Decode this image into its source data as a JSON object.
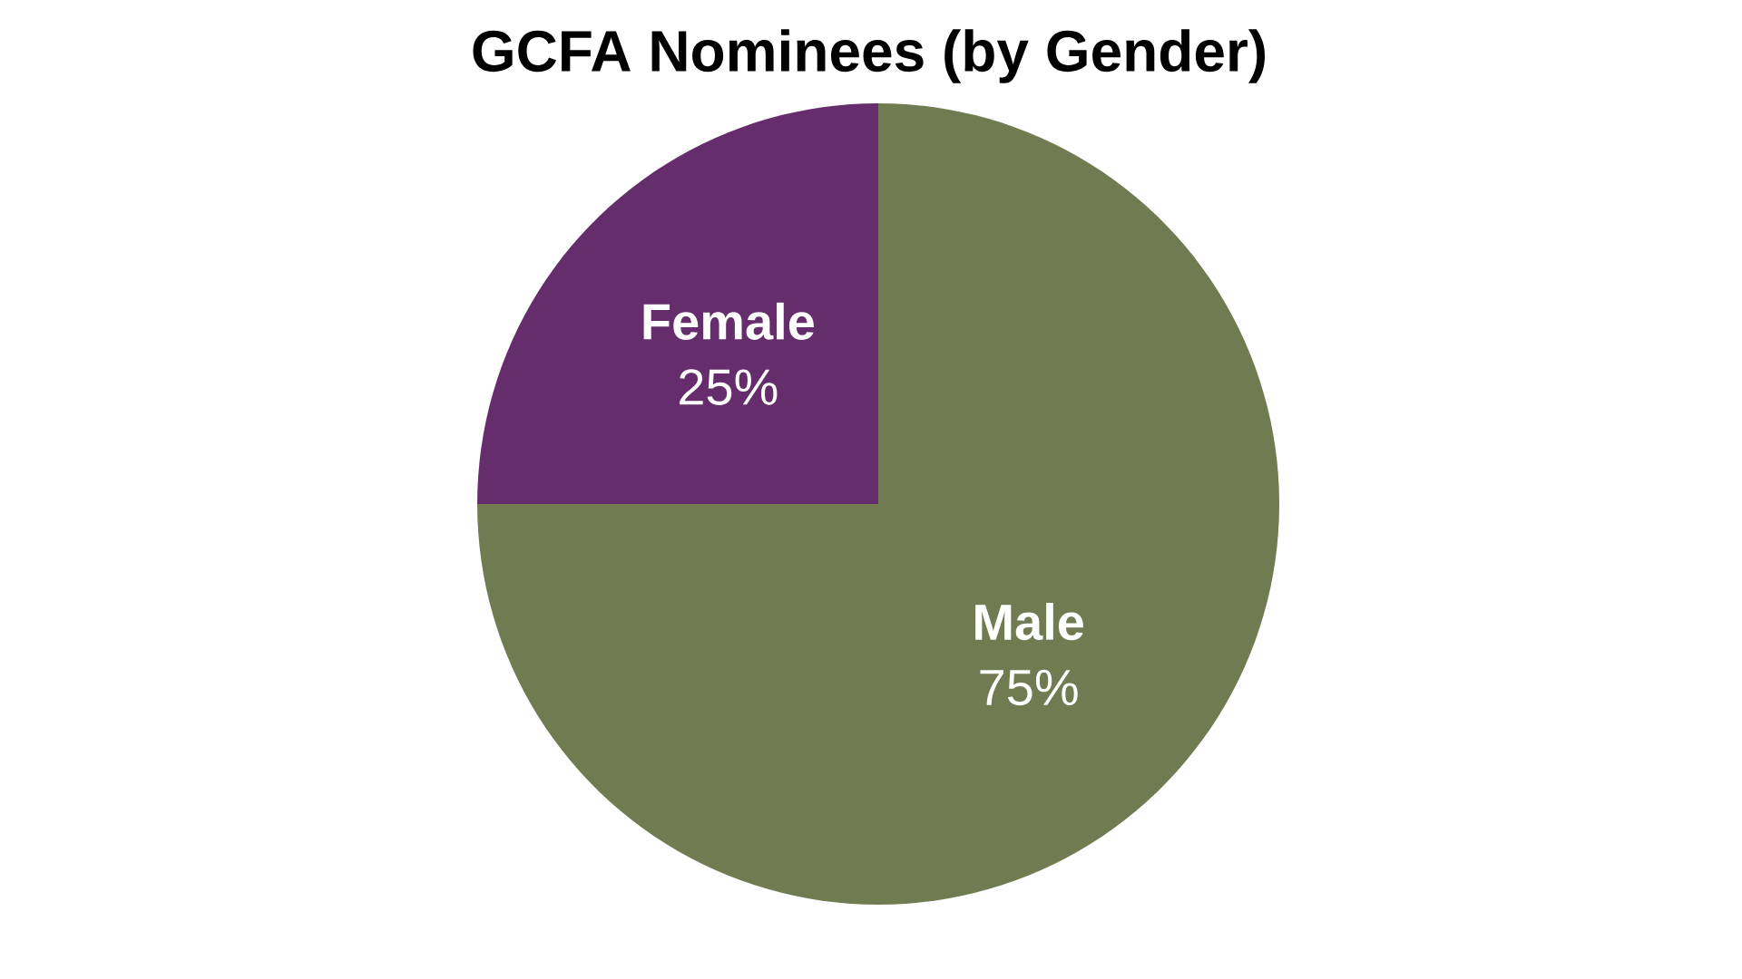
{
  "chart_data": {
    "type": "pie",
    "title": "GCFA Nominees (by Gender)",
    "categories": [
      "Female",
      "Male"
    ],
    "values": [
      25,
      75
    ],
    "colors": [
      "#652d6b",
      "#717b51"
    ],
    "value_labels": [
      "25%",
      "75%"
    ]
  }
}
